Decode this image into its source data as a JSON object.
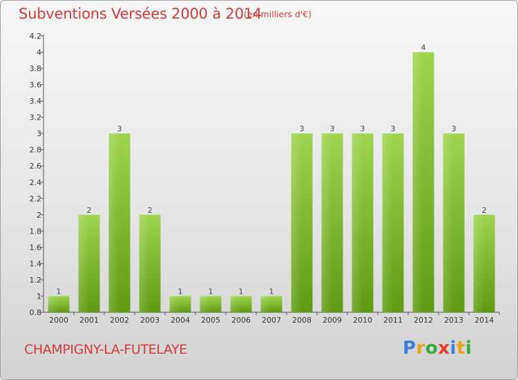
{
  "header": {
    "title": "Subventions Versées 2000 à 2014",
    "subtitle": "(en milliers d'€)"
  },
  "footer": {
    "commune": "CHAMPIGNY-LA-FUTELAYE",
    "logo_letters": [
      "P",
      "r",
      "o",
      "x",
      "i",
      "t",
      "i"
    ]
  },
  "colors": {
    "title": "#d23a3a",
    "bar_top": "#9ed44e",
    "bar_bottom": "#5e9a12"
  },
  "chart_data": {
    "type": "bar",
    "title": "Subventions Versées 2000 à 2014",
    "subtitle": "(en milliers d'€)",
    "categories": [
      "2000",
      "2001",
      "2002",
      "2003",
      "2004",
      "2005",
      "2006",
      "2007",
      "2008",
      "2009",
      "2010",
      "2011",
      "2012",
      "2013",
      "2014"
    ],
    "values": [
      1,
      2,
      3,
      2,
      1,
      1,
      1,
      1,
      3,
      3,
      3,
      3,
      4,
      3,
      2
    ],
    "data_labels": [
      "1",
      "2",
      "3",
      "2",
      "1",
      "1",
      "1",
      "1",
      "3",
      "3",
      "3",
      "3",
      "4",
      "3",
      "2"
    ],
    "ylim": [
      0.8,
      4.2
    ],
    "yticks": [
      0.8,
      1,
      1.2,
      1.4,
      1.6,
      1.8,
      2,
      2.2,
      2.4,
      2.6,
      2.8,
      3,
      3.2,
      3.4,
      3.6,
      3.8,
      4,
      4.2
    ],
    "ytick_labels": [
      "0.8",
      "1",
      "1.2",
      "1.4",
      "1.6",
      "1.8",
      "2",
      "2.2",
      "2.4",
      "2.6",
      "2.8",
      "3",
      "3.2",
      "3.4",
      "3.6",
      "3.8",
      "4",
      "4.2"
    ],
    "xlabel": "",
    "ylabel": "",
    "grid": false,
    "legend": "none"
  }
}
